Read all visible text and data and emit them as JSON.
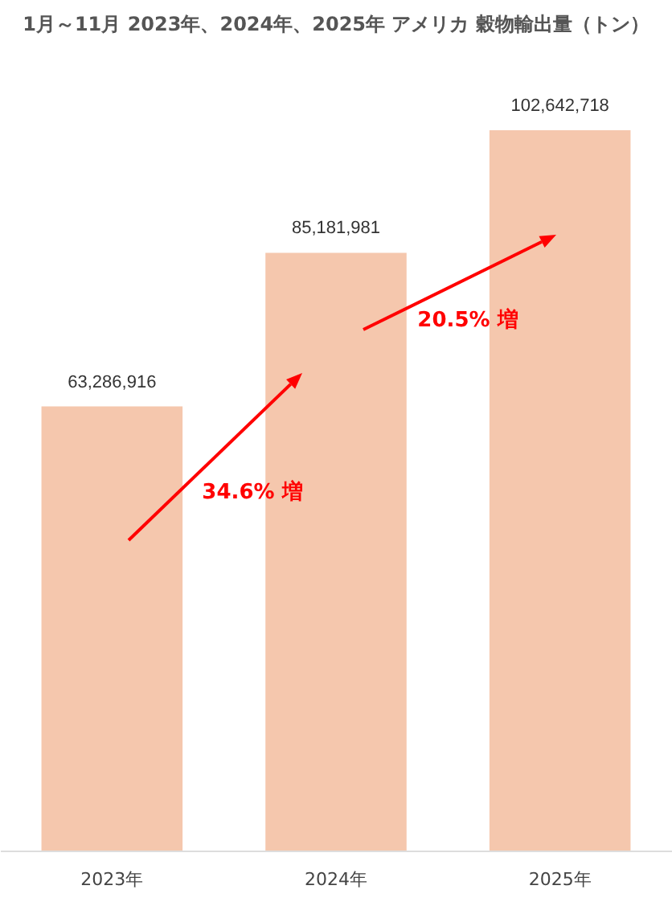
{
  "chart_data": {
    "type": "bar",
    "title": "1月～11月 2023年、2024年、2025年 アメリカ 穀物輸出量（トン）",
    "categories": [
      "2023年",
      "2024年",
      "2025年"
    ],
    "values": [
      63286916,
      85181981,
      102642718
    ],
    "color": "#f5c7ad",
    "value_labels": [
      "63,286,916",
      "85,181,981",
      "102,642,718"
    ],
    "annotations": [
      "34.6% 増",
      "20.5% 増"
    ]
  }
}
